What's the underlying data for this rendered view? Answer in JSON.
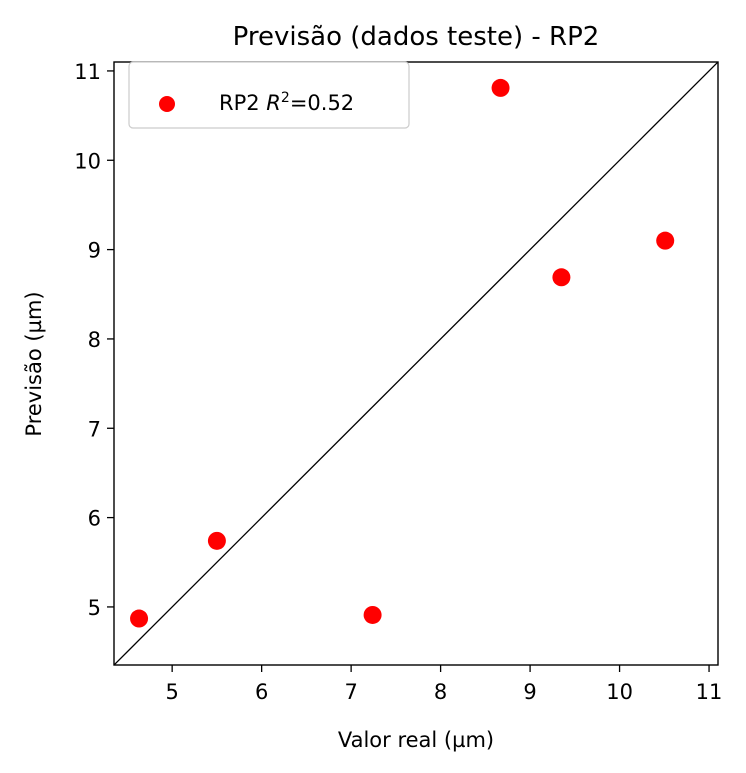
{
  "chart_data": {
    "type": "scatter",
    "title": "Previsão (dados teste) - RP2",
    "xlabel": "Valor real (µm)",
    "ylabel": "Previsão (µm)",
    "xlim": [
      4.35,
      11.1
    ],
    "ylim": [
      4.35,
      11.1
    ],
    "xticks": [
      5,
      6,
      7,
      8,
      9,
      10,
      11
    ],
    "yticks": [
      5,
      6,
      7,
      8,
      9,
      10,
      11
    ],
    "grid": false,
    "legend_position": "top-left",
    "identity_line": true,
    "identity_line_color": "#000000",
    "series": [
      {
        "name": "RP2",
        "legend_prefix": "RP2 ",
        "legend_r_symbol": "R",
        "legend_r_exponent": "2",
        "legend_r_value": "=0.52",
        "color": "#ff0000",
        "marker": "circle",
        "x": [
          4.63,
          5.5,
          7.24,
          8.67,
          9.35,
          10.51
        ],
        "y": [
          4.87,
          5.74,
          4.91,
          10.81,
          8.69,
          9.1
        ]
      }
    ]
  }
}
